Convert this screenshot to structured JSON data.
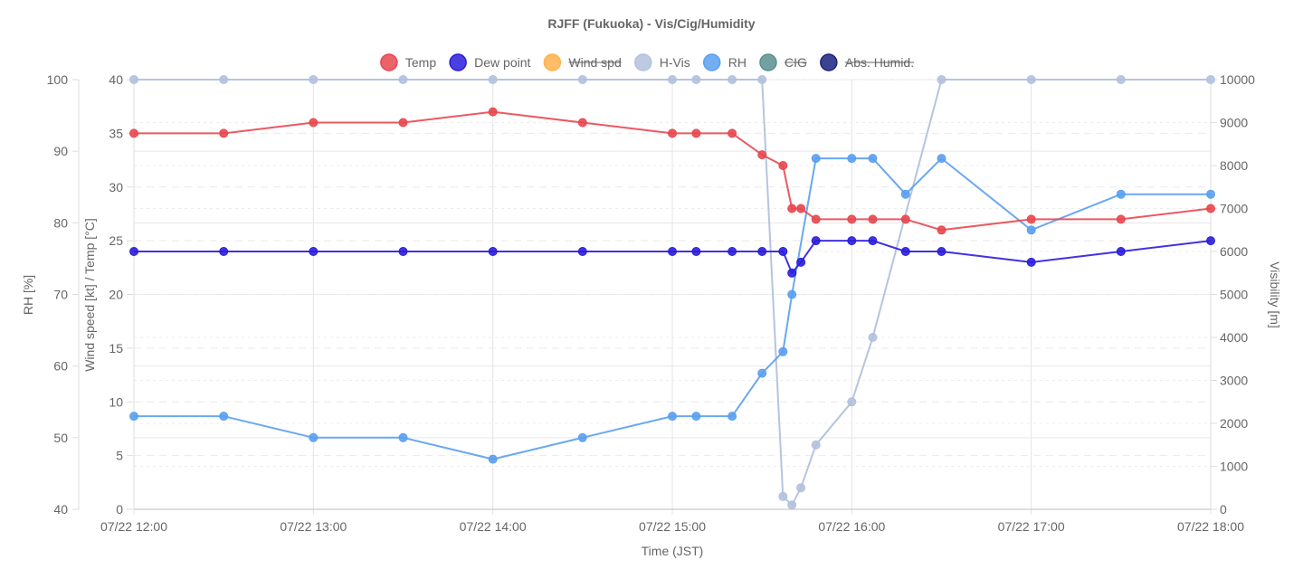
{
  "chart_data": {
    "type": "line",
    "title": "RJFF (Fukuoka) - Vis/Cig/Humidity",
    "xlabel": "Time (JST)",
    "x_ticks": [
      "07/22 12:00",
      "07/22 13:00",
      "07/22 14:00",
      "07/22 15:00",
      "07/22 16:00",
      "07/22 17:00",
      "07/22 18:00"
    ],
    "x_range": [
      "07/22 12:00",
      "07/22 18:00"
    ],
    "y_axes": {
      "rh": {
        "label": "RH [%]",
        "position": "left-outer",
        "range": [
          40,
          100
        ],
        "ticks": [
          40,
          50,
          60,
          70,
          80,
          90,
          100
        ]
      },
      "temp_wind": {
        "label": "Wind speed [kt] / Temp [°C]",
        "position": "left-inner",
        "range": [
          0,
          40
        ],
        "ticks": [
          0,
          5,
          10,
          15,
          20,
          25,
          30,
          35,
          40
        ]
      },
      "vis": {
        "label": "Visibility [m]",
        "position": "right",
        "range": [
          0,
          10000
        ],
        "ticks": [
          0,
          1000,
          2000,
          3000,
          4000,
          5000,
          6000,
          7000,
          8000,
          9000,
          10000
        ]
      }
    },
    "grid": true,
    "legend_position": "top",
    "legend": [
      {
        "name": "Temp",
        "color": "#e8474f",
        "hidden": false
      },
      {
        "name": "Dew point",
        "color": "#2b1ddc",
        "hidden": false
      },
      {
        "name": "Wind spd",
        "color": "#ffb14e",
        "hidden": true
      },
      {
        "name": "H-Vis",
        "color": "#b2c1dd",
        "hidden": false
      },
      {
        "name": "RH",
        "color": "#5a9ff0",
        "hidden": false
      },
      {
        "name": "CIG",
        "color": "#5a8f8f",
        "hidden": true
      },
      {
        "name": "Abs. Humid.",
        "color": "#1a237e",
        "hidden": true
      }
    ],
    "series": [
      {
        "name": "Temp",
        "axis": "temp_wind",
        "color": "#e8474f",
        "points": [
          [
            "07/22 12:00",
            35
          ],
          [
            "07/22 12:30",
            35
          ],
          [
            "07/22 13:00",
            36
          ],
          [
            "07/22 13:30",
            36
          ],
          [
            "07/22 14:00",
            37
          ],
          [
            "07/22 14:30",
            36
          ],
          [
            "07/22 15:00",
            35
          ],
          [
            "07/22 15:08",
            35
          ],
          [
            "07/22 15:20",
            35
          ],
          [
            "07/22 15:30",
            33
          ],
          [
            "07/22 15:37",
            32
          ],
          [
            "07/22 15:40",
            28
          ],
          [
            "07/22 15:43",
            28
          ],
          [
            "07/22 15:48",
            27
          ],
          [
            "07/22 16:00",
            27
          ],
          [
            "07/22 16:07",
            27
          ],
          [
            "07/22 16:18",
            27
          ],
          [
            "07/22 16:30",
            26
          ],
          [
            "07/22 17:00",
            27
          ],
          [
            "07/22 17:30",
            27
          ],
          [
            "07/22 18:00",
            28
          ]
        ]
      },
      {
        "name": "Dew point",
        "axis": "temp_wind",
        "color": "#2b1ddc",
        "points": [
          [
            "07/22 12:00",
            24
          ],
          [
            "07/22 12:30",
            24
          ],
          [
            "07/22 13:00",
            24
          ],
          [
            "07/22 13:30",
            24
          ],
          [
            "07/22 14:00",
            24
          ],
          [
            "07/22 14:30",
            24
          ],
          [
            "07/22 15:00",
            24
          ],
          [
            "07/22 15:08",
            24
          ],
          [
            "07/22 15:20",
            24
          ],
          [
            "07/22 15:30",
            24
          ],
          [
            "07/22 15:37",
            24
          ],
          [
            "07/22 15:40",
            22
          ],
          [
            "07/22 15:43",
            23
          ],
          [
            "07/22 15:48",
            25
          ],
          [
            "07/22 16:00",
            25
          ],
          [
            "07/22 16:07",
            25
          ],
          [
            "07/22 16:18",
            24
          ],
          [
            "07/22 16:30",
            24
          ],
          [
            "07/22 17:00",
            23
          ],
          [
            "07/22 17:30",
            24
          ],
          [
            "07/22 18:00",
            25
          ]
        ]
      },
      {
        "name": "H-Vis",
        "axis": "vis",
        "color": "#b2c1dd",
        "points": [
          [
            "07/22 12:00",
            10000
          ],
          [
            "07/22 12:30",
            10000
          ],
          [
            "07/22 13:00",
            10000
          ],
          [
            "07/22 13:30",
            10000
          ],
          [
            "07/22 14:00",
            10000
          ],
          [
            "07/22 14:30",
            10000
          ],
          [
            "07/22 15:00",
            10000
          ],
          [
            "07/22 15:08",
            10000
          ],
          [
            "07/22 15:20",
            10000
          ],
          [
            "07/22 15:30",
            10000
          ],
          [
            "07/22 15:37",
            300
          ],
          [
            "07/22 15:40",
            100
          ],
          [
            "07/22 15:43",
            500
          ],
          [
            "07/22 15:48",
            1500
          ],
          [
            "07/22 16:00",
            2500
          ],
          [
            "07/22 16:07",
            4000
          ],
          [
            "07/22 16:30",
            10000
          ],
          [
            "07/22 17:00",
            10000
          ],
          [
            "07/22 17:30",
            10000
          ],
          [
            "07/22 18:00",
            10000
          ]
        ]
      },
      {
        "name": "RH",
        "axis": "rh",
        "color": "#5a9ff0",
        "points": [
          [
            "07/22 12:00",
            53
          ],
          [
            "07/22 12:30",
            53
          ],
          [
            "07/22 13:00",
            50
          ],
          [
            "07/22 13:30",
            50
          ],
          [
            "07/22 14:00",
            47
          ],
          [
            "07/22 14:30",
            50
          ],
          [
            "07/22 15:00",
            53
          ],
          [
            "07/22 15:08",
            53
          ],
          [
            "07/22 15:20",
            53
          ],
          [
            "07/22 15:30",
            59
          ],
          [
            "07/22 15:37",
            62
          ],
          [
            "07/22 15:40",
            70
          ],
          [
            "07/22 15:48",
            89
          ],
          [
            "07/22 16:00",
            89
          ],
          [
            "07/22 16:07",
            89
          ],
          [
            "07/22 16:18",
            84
          ],
          [
            "07/22 16:30",
            89
          ],
          [
            "07/22 17:00",
            79
          ],
          [
            "07/22 17:30",
            84
          ],
          [
            "07/22 18:00",
            84
          ]
        ]
      }
    ]
  }
}
